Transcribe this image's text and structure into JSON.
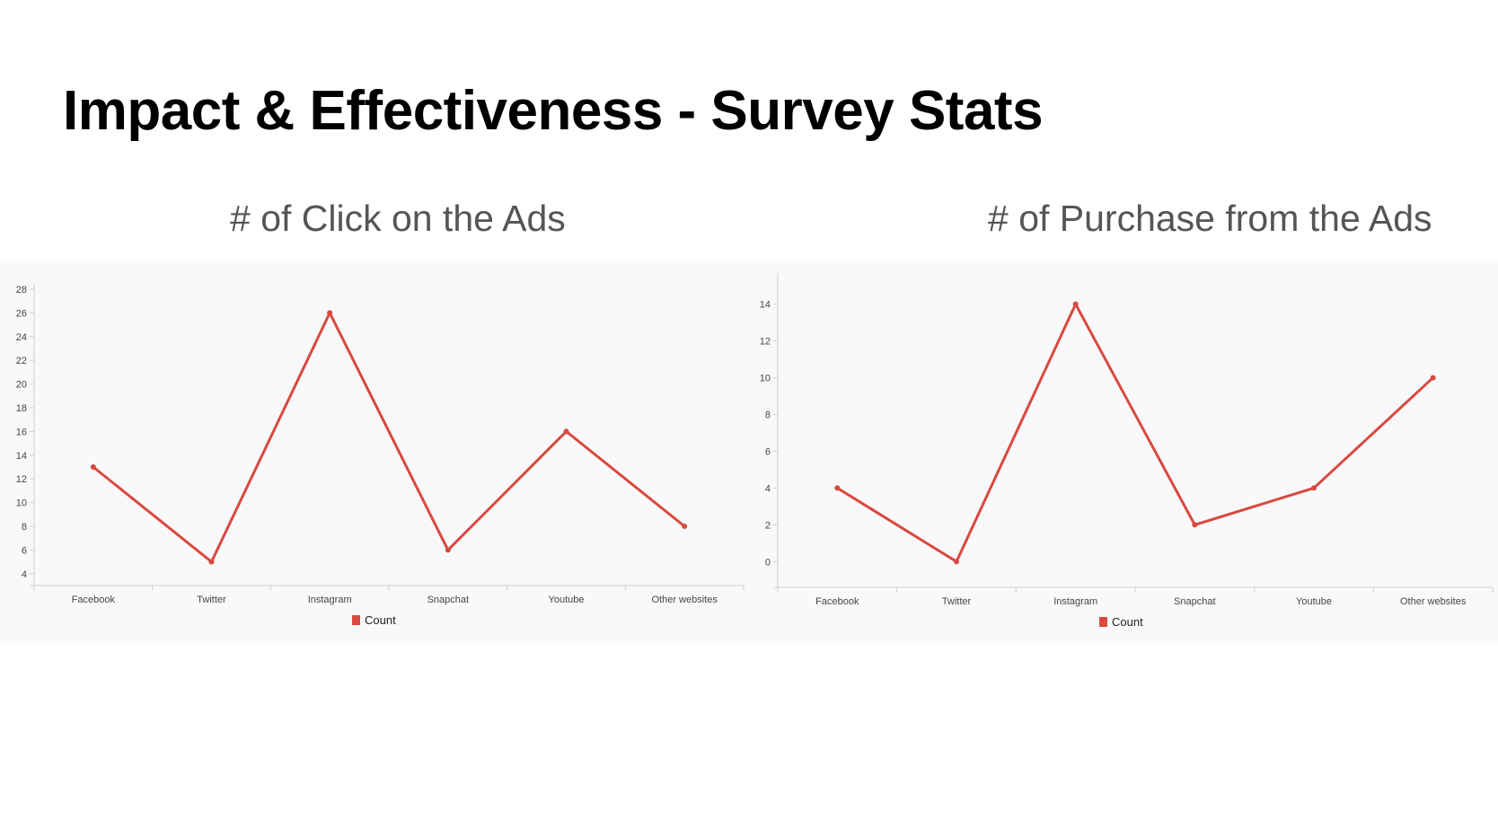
{
  "title": "Impact & Effectiveness - Survey Stats",
  "colors": {
    "series": "#d9493f",
    "axis": "#cfcfcf",
    "panel_bg": "#f9f9fb"
  },
  "chart_data": [
    {
      "type": "line",
      "title": "# of Click on the Ads",
      "categories": [
        "Facebook",
        "Twitter",
        "Instagram",
        "Snapchat",
        "Youtube",
        "Other websites"
      ],
      "series": [
        {
          "name": "Count",
          "values": [
            13,
            5,
            26,
            6,
            16,
            8
          ]
        }
      ],
      "ylim": [
        3,
        28
      ],
      "yticks": [
        4,
        6,
        8,
        10,
        12,
        14,
        16,
        18,
        20,
        22,
        24,
        26,
        28
      ],
      "grid": false,
      "legend": "bottom-center"
    },
    {
      "type": "line",
      "title": "# of Purchase from the Ads",
      "categories": [
        "Facebook",
        "Twitter",
        "Instagram",
        "Snapchat",
        "Youtube",
        "Other websites"
      ],
      "series": [
        {
          "name": "Count",
          "values": [
            4,
            0,
            14,
            2,
            4,
            10
          ]
        }
      ],
      "ylim": [
        -1.4,
        15.4
      ],
      "yticks": [
        0,
        2,
        4,
        6,
        8,
        10,
        12,
        14
      ],
      "grid": false,
      "legend": "bottom-center"
    }
  ]
}
